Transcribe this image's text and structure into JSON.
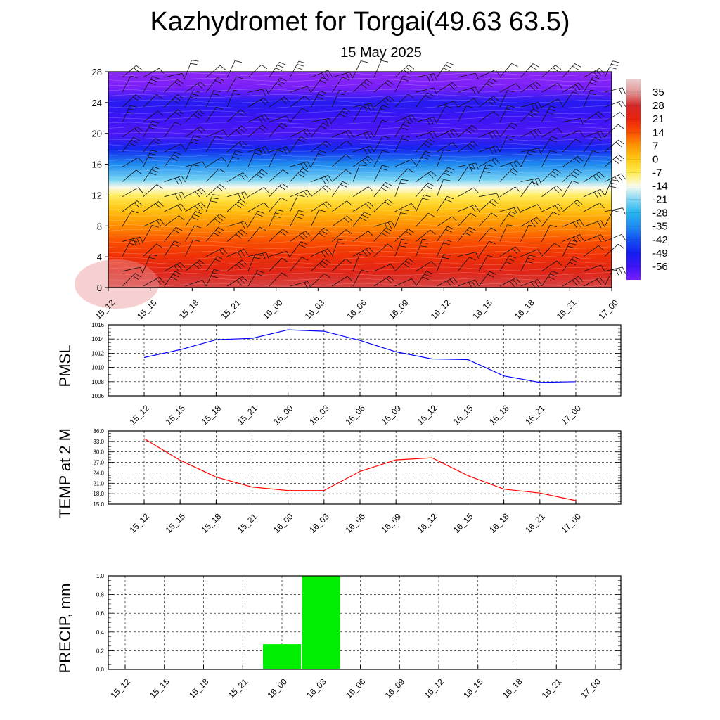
{
  "title": "Kazhydromet for Torgai(49.63 63.5)",
  "subtitle": "15 May 2025",
  "time_labels": [
    "15_12",
    "15_15",
    "15_18",
    "15_21",
    "16_00",
    "16_03",
    "16_06",
    "16_09",
    "16_12",
    "16_15",
    "16_18",
    "16_21",
    "17_00"
  ],
  "chart_data": [
    {
      "id": "cross-section",
      "type": "heatmap",
      "x": [
        "15_12",
        "15_15",
        "15_18",
        "15_21",
        "16_00",
        "16_03",
        "16_06",
        "16_09",
        "16_12",
        "16_15",
        "16_18",
        "16_21",
        "17_00"
      ],
      "ylim": [
        0,
        28
      ],
      "yticks": [
        0,
        4,
        8,
        12,
        16,
        20,
        24,
        28
      ],
      "profile_y": [
        0,
        2,
        4,
        6,
        8,
        10,
        11,
        12,
        13,
        14,
        16,
        18,
        20,
        22,
        24,
        26,
        28
      ],
      "profile_values": [
        30,
        24,
        19,
        14,
        8,
        1,
        -3,
        -8,
        -14,
        -22,
        -35,
        -48,
        -58,
        -56,
        -52,
        -64,
        -70
      ],
      "wind_barbs": true,
      "colorbar": {
        "labels": [
          "35",
          "28",
          "21",
          "14",
          "7",
          "0",
          "-7",
          "-14",
          "-21",
          "-28",
          "-35",
          "-42",
          "-49",
          "-56"
        ],
        "range": [
          -63,
          42
        ]
      }
    },
    {
      "id": "pmsl",
      "type": "line",
      "ylabel": "PMSL",
      "x": [
        "15_12",
        "15_15",
        "15_18",
        "15_21",
        "16_00",
        "16_03",
        "16_06",
        "16_09",
        "16_12",
        "16_15",
        "16_18",
        "16_21",
        "17_00"
      ],
      "values": [
        1011.4,
        1012.5,
        1013.9,
        1014.1,
        1015.3,
        1015.1,
        1013.8,
        1012.2,
        1011.2,
        1011.1,
        1008.8,
        1007.9,
        1008.0
      ],
      "ylim": [
        1006,
        1016
      ],
      "yticks": [
        "1006",
        "1008",
        "1010",
        "1012",
        "1014",
        "1016"
      ],
      "color": "#0000ff"
    },
    {
      "id": "temp2m",
      "type": "line",
      "ylabel": "TEMP at 2 M",
      "x": [
        "15_12",
        "15_15",
        "15_18",
        "15_21",
        "16_00",
        "16_03",
        "16_06",
        "16_09",
        "16_12",
        "16_15",
        "16_18",
        "16_21",
        "17_00"
      ],
      "values": [
        33.8,
        27.6,
        22.8,
        19.9,
        18.9,
        18.9,
        24.4,
        27.7,
        28.3,
        23.2,
        19.3,
        18.2,
        16.0
      ],
      "ylim": [
        15,
        36
      ],
      "yticks": [
        "15.0",
        "18.0",
        "21.0",
        "24.0",
        "27.0",
        "30.0",
        "33.0",
        "36.0"
      ],
      "color": "#ff0000"
    },
    {
      "id": "precip",
      "type": "bar",
      "ylabel": "PRECIP, mm",
      "x": [
        "15_12",
        "15_15",
        "15_18",
        "15_21",
        "16_00",
        "16_03",
        "16_06",
        "16_09",
        "16_12",
        "16_15",
        "16_18",
        "16_21",
        "17_00"
      ],
      "values": [
        0,
        0,
        0,
        0,
        0.27,
        1.0,
        0,
        0,
        0,
        0,
        0,
        0,
        0
      ],
      "ylim": [
        0,
        1
      ],
      "yticks": [
        "0.0",
        "0.2",
        "0.4",
        "0.6",
        "0.8",
        "1.0"
      ],
      "color": "#00ee00"
    }
  ]
}
